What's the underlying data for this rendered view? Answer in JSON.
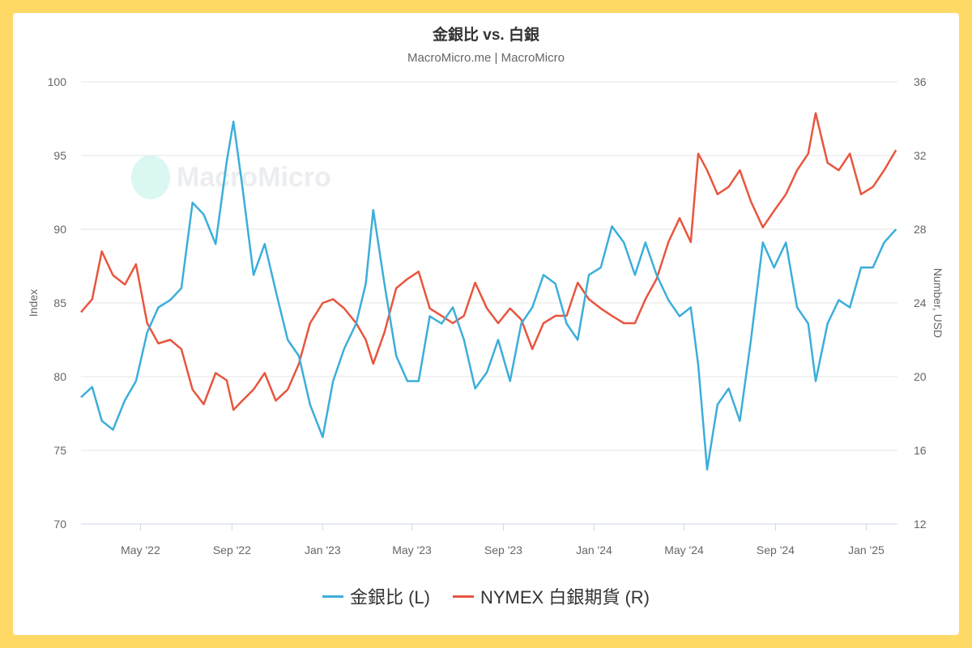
{
  "chart_data": {
    "type": "line",
    "title": "金銀比 vs. 白銀",
    "subtitle": "MacroMicro.me | MacroMicro",
    "watermark": "MacroMicro",
    "ylabel_left": "Index",
    "ylabel_right": "Number, USD",
    "ylim_left": [
      70,
      100
    ],
    "yticks_left": [
      70,
      75,
      80,
      85,
      90,
      95,
      100
    ],
    "ylim_right": [
      12,
      36
    ],
    "yticks_right": [
      12,
      16,
      20,
      24,
      28,
      32,
      36
    ],
    "xlim": [
      "2022-02-10",
      "2025-02-12"
    ],
    "xticks": [
      {
        "date": "2022-05-01",
        "label": "May '22"
      },
      {
        "date": "2022-09-01",
        "label": "Sep '22"
      },
      {
        "date": "2023-01-01",
        "label": "Jan '23"
      },
      {
        "date": "2023-05-01",
        "label": "May '23"
      },
      {
        "date": "2023-09-01",
        "label": "Sep '23"
      },
      {
        "date": "2024-01-01",
        "label": "Jan '24"
      },
      {
        "date": "2024-05-01",
        "label": "May '24"
      },
      {
        "date": "2024-09-01",
        "label": "Sep '24"
      },
      {
        "date": "2025-01-01",
        "label": "Jan '25"
      }
    ],
    "grid": true,
    "legend_position": "bottom",
    "x": [
      "2022-02-10",
      "2022-02-25",
      "2022-03-10",
      "2022-03-25",
      "2022-04-10",
      "2022-04-25",
      "2022-05-10",
      "2022-05-25",
      "2022-06-10",
      "2022-06-25",
      "2022-07-10",
      "2022-07-25",
      "2022-08-10",
      "2022-08-25",
      "2022-09-03",
      "2022-09-15",
      "2022-09-30",
      "2022-10-15",
      "2022-10-30",
      "2022-11-15",
      "2022-11-30",
      "2022-12-15",
      "2023-01-01",
      "2023-01-15",
      "2023-01-30",
      "2023-02-15",
      "2023-02-28",
      "2023-03-10",
      "2023-03-25",
      "2023-04-10",
      "2023-04-25",
      "2023-05-10",
      "2023-05-25",
      "2023-06-10",
      "2023-06-25",
      "2023-07-10",
      "2023-07-25",
      "2023-08-10",
      "2023-08-25",
      "2023-09-10",
      "2023-09-25",
      "2023-10-10",
      "2023-10-25",
      "2023-11-10",
      "2023-11-25",
      "2023-12-10",
      "2023-12-25",
      "2024-01-10",
      "2024-01-25",
      "2024-02-10",
      "2024-02-25",
      "2024-03-10",
      "2024-03-25",
      "2024-04-10",
      "2024-04-25",
      "2024-05-10",
      "2024-05-20",
      "2024-06-01",
      "2024-06-15",
      "2024-06-30",
      "2024-07-15",
      "2024-07-30",
      "2024-08-15",
      "2024-08-30",
      "2024-09-15",
      "2024-09-30",
      "2024-10-15",
      "2024-10-25",
      "2024-11-10",
      "2024-11-25",
      "2024-12-10",
      "2024-12-25",
      "2025-01-10",
      "2025-01-25",
      "2025-02-10"
    ],
    "series": [
      {
        "name": "金銀比 (L)",
        "axis": "left",
        "color": "#3CAEDA",
        "values": [
          78.6,
          79.3,
          77,
          76.4,
          78.4,
          79.7,
          83,
          84.7,
          85.2,
          86,
          91.8,
          91,
          89,
          94.6,
          97.3,
          92.9,
          86.9,
          89,
          85.8,
          82.5,
          81.4,
          78.1,
          75.9,
          79.7,
          81.9,
          83.6,
          86.3,
          91.3,
          86.3,
          81.4,
          79.7,
          79.7,
          84.1,
          83.6,
          84.7,
          82.5,
          79.2,
          80.3,
          82.5,
          79.7,
          83.6,
          84.7,
          86.9,
          86.3,
          83.6,
          82.5,
          86.9,
          87.4,
          90.2,
          89.1,
          86.9,
          89.1,
          86.9,
          85.2,
          84.1,
          84.7,
          80.8,
          73.7,
          78.1,
          79.2,
          77,
          82.5,
          89.1,
          87.4,
          89.1,
          84.7,
          83.6,
          79.7,
          83.6,
          85.2,
          84.7,
          87.4,
          87.4,
          89.1,
          90
        ]
      },
      {
        "name": "NYMEX 白銀期貨 (R)",
        "axis": "right",
        "color": "#E8553E",
        "values": [
          23.5,
          24.2,
          26.8,
          25.5,
          25,
          26.1,
          22.9,
          21.8,
          22,
          21.5,
          19.3,
          18.5,
          20.2,
          19.8,
          18.2,
          18.7,
          19.3,
          20.2,
          18.7,
          19.3,
          20.7,
          22.9,
          24,
          24.2,
          23.7,
          22.9,
          22,
          20.7,
          22.4,
          24.8,
          25.3,
          25.7,
          23.7,
          23.3,
          22.9,
          23.3,
          25.1,
          23.7,
          22.9,
          23.7,
          23.1,
          21.5,
          22.9,
          23.3,
          23.3,
          25.1,
          24.2,
          23.7,
          23.3,
          22.9,
          22.9,
          24.2,
          25.3,
          27.3,
          28.6,
          27.3,
          32.1,
          31.2,
          29.9,
          30.3,
          31.2,
          29.5,
          28.1,
          29,
          29.9,
          31.2,
          32.1,
          34.3,
          31.6,
          31.2,
          32.1,
          29.9,
          30.3,
          31.2,
          32.3
        ]
      }
    ]
  }
}
